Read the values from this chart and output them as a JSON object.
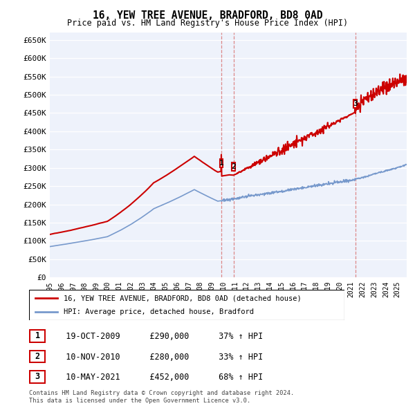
{
  "title": "16, YEW TREE AVENUE, BRADFORD, BD8 0AD",
  "subtitle": "Price paid vs. HM Land Registry's House Price Index (HPI)",
  "ylabel_ticks": [
    "£0",
    "£50K",
    "£100K",
    "£150K",
    "£200K",
    "£250K",
    "£300K",
    "£350K",
    "£400K",
    "£450K",
    "£500K",
    "£550K",
    "£600K",
    "£650K"
  ],
  "ytick_values": [
    0,
    50000,
    100000,
    150000,
    200000,
    250000,
    300000,
    350000,
    400000,
    450000,
    500000,
    550000,
    600000,
    650000
  ],
  "xlim_start": 1995.0,
  "xlim_end": 2025.8,
  "ylim_min": 0,
  "ylim_max": 670000,
  "legend_red_label": "16, YEW TREE AVENUE, BRADFORD, BD8 0AD (detached house)",
  "legend_blue_label": "HPI: Average price, detached house, Bradford",
  "transaction_markers": [
    {
      "num": 1,
      "year": 2009.8,
      "price": 290000,
      "date": "19-OCT-2009",
      "price_str": "£290,000",
      "pct": "37% ↑ HPI"
    },
    {
      "num": 2,
      "year": 2010.85,
      "price": 280000,
      "date": "10-NOV-2010",
      "price_str": "£280,000",
      "pct": "33% ↑ HPI"
    },
    {
      "num": 3,
      "year": 2021.36,
      "price": 452000,
      "date": "10-MAY-2021",
      "price_str": "£452,000",
      "pct": "68% ↑ HPI"
    }
  ],
  "footer_line1": "Contains HM Land Registry data © Crown copyright and database right 2024.",
  "footer_line2": "This data is licensed under the Open Government Licence v3.0.",
  "bg_color": "#ffffff",
  "plot_bg_color": "#eef2fb",
  "grid_color": "#ffffff",
  "red_line_color": "#cc0000",
  "blue_line_color": "#7799cc",
  "marker_box_color": "#cc0000",
  "vline_color": "#dd8888"
}
